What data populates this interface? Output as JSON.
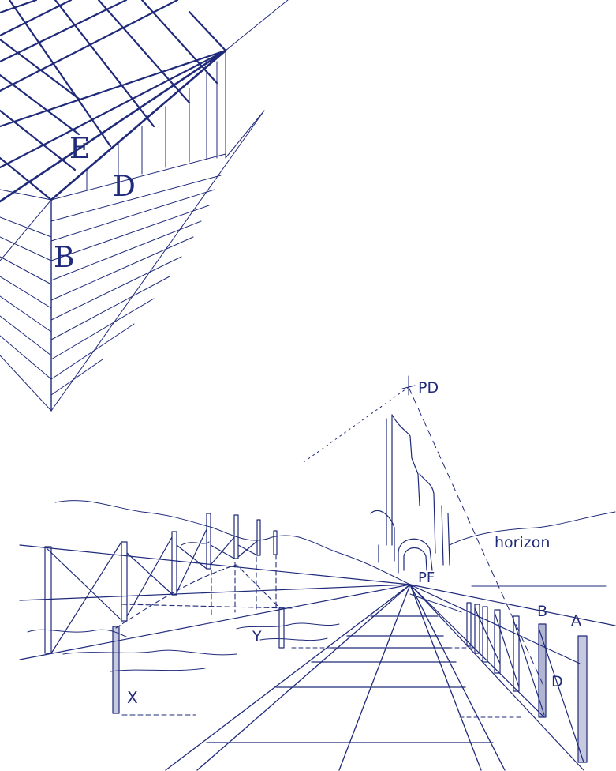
{
  "cube_figure": {
    "labels": {
      "e": "E",
      "d": "D",
      "b": "B"
    }
  },
  "railway_figure": {
    "labels": {
      "pd": "PD",
      "horizon": "horizon",
      "pf": "PF",
      "b": "B",
      "a": "A",
      "d": "D",
      "x": "X",
      "y": "Y"
    }
  },
  "colors": {
    "ink": "#1f2a7a",
    "paper": "#ffffff"
  }
}
